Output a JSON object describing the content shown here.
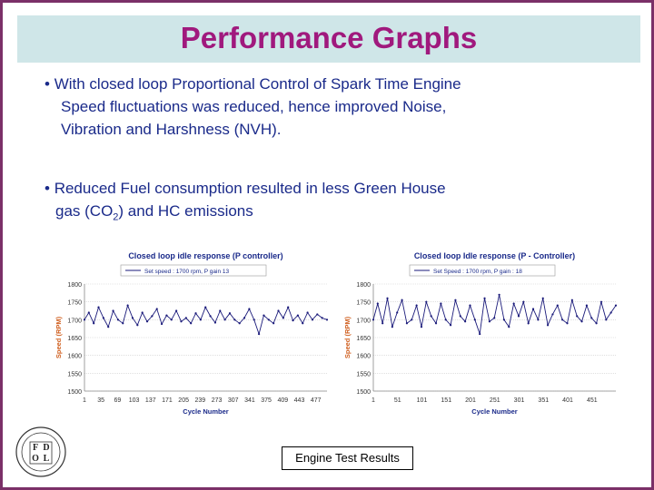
{
  "slide": {
    "title": "Performance Graphs",
    "bullet1": {
      "line1": "With closed loop Proportional Control of Spark Time Engine",
      "line2": "Speed fluctuations  was  reduced, hence  improved  Noise,",
      "line3": "Vibration and Harshness (NVH)."
    },
    "bullet2": {
      "line1": "Reduced Fuel consumption resulted in less Green House",
      "line2_pre": "gas  (CO",
      "line2_sub": "2",
      "line2_post": ") and HC emissions"
    },
    "caption": "Engine Test Results",
    "logo_letters": [
      "F",
      "D",
      "O",
      "L"
    ]
  },
  "chart_data": [
    {
      "type": "line",
      "title": "Closed loop idle response (P controller)",
      "legend": "Set speed : 1700 rpm, P gain 13",
      "xlabel": "Cycle Number",
      "ylabel": "Speed (RPM)",
      "ylim": [
        1500,
        1800
      ],
      "yticks": [
        "1800",
        "1750",
        "1700",
        "1650",
        "1600",
        "1550",
        "1500"
      ],
      "xticks": [
        "1",
        "35",
        "69",
        "103",
        "137",
        "171",
        "205",
        "239",
        "273",
        "307",
        "341",
        "375",
        "409",
        "443",
        "477"
      ],
      "xlim": [
        1,
        500
      ],
      "color": "#1a1a7a",
      "series": [
        {
          "x": [
            1,
            10,
            20,
            30,
            40,
            50,
            60,
            70,
            80,
            90,
            100,
            110,
            120,
            130,
            140,
            150,
            160,
            170,
            180,
            190,
            200,
            210,
            220,
            230,
            240,
            250,
            260,
            270,
            280,
            290,
            300,
            310,
            320,
            330,
            340,
            350,
            360,
            370,
            380,
            390,
            400,
            410,
            420,
            430,
            440,
            450,
            460,
            470,
            480,
            490,
            500
          ],
          "values": [
            1700,
            1720,
            1690,
            1735,
            1705,
            1680,
            1725,
            1700,
            1690,
            1740,
            1705,
            1685,
            1720,
            1695,
            1710,
            1730,
            1688,
            1712,
            1700,
            1725,
            1695,
            1705,
            1690,
            1718,
            1700,
            1735,
            1710,
            1692,
            1725,
            1700,
            1718,
            1700,
            1690,
            1705,
            1730,
            1700,
            1660,
            1712,
            1700,
            1690,
            1725,
            1705,
            1735,
            1698,
            1712,
            1690,
            1720,
            1700,
            1715,
            1705,
            1700
          ]
        }
      ]
    },
    {
      "type": "line",
      "title": "Closed loop Idle response (P - Controller)",
      "legend": "Set Speed : 1700 rpm, P gain : 18",
      "xlabel": "Cycle Number",
      "ylabel": "Speed (RPM)",
      "ylim": [
        1500,
        1800
      ],
      "yticks": [
        "1800",
        "1750",
        "1700",
        "1650",
        "1600",
        "1550",
        "1500"
      ],
      "xticks": [
        "1",
        "51",
        "101",
        "151",
        "201",
        "251",
        "301",
        "351",
        "401",
        "451"
      ],
      "xlim": [
        1,
        500
      ],
      "color": "#1a1a7a",
      "series": [
        {
          "x": [
            1,
            10,
            20,
            30,
            40,
            50,
            60,
            70,
            80,
            90,
            100,
            110,
            120,
            130,
            140,
            150,
            160,
            170,
            180,
            190,
            200,
            210,
            220,
            230,
            240,
            250,
            260,
            270,
            280,
            290,
            300,
            310,
            320,
            330,
            340,
            350,
            360,
            370,
            380,
            390,
            400,
            410,
            420,
            430,
            440,
            450,
            460,
            470,
            480,
            490,
            500
          ],
          "values": [
            1700,
            1745,
            1690,
            1760,
            1680,
            1720,
            1755,
            1690,
            1700,
            1740,
            1680,
            1750,
            1710,
            1690,
            1745,
            1700,
            1685,
            1755,
            1710,
            1695,
            1740,
            1700,
            1660,
            1760,
            1695,
            1705,
            1770,
            1700,
            1680,
            1745,
            1710,
            1750,
            1690,
            1730,
            1700,
            1760,
            1685,
            1715,
            1740,
            1700,
            1690,
            1755,
            1710,
            1695,
            1740,
            1705,
            1690,
            1750,
            1700,
            1720,
            1740
          ]
        }
      ]
    }
  ]
}
